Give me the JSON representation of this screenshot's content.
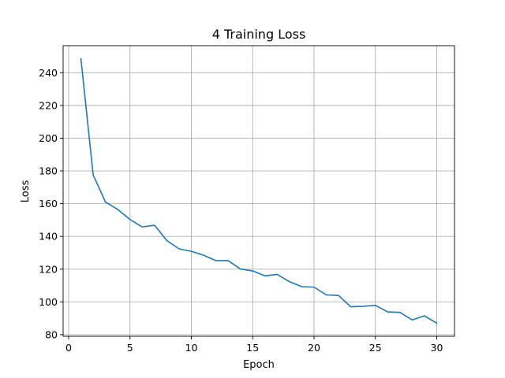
{
  "chart_data": {
    "type": "line",
    "title": "4 Training Loss",
    "xlabel": "Epoch",
    "ylabel": "Loss",
    "xlim": [
      -0.45,
      31.45
    ],
    "ylim": [
      79,
      256.5
    ],
    "xticks": [
      0,
      5,
      10,
      15,
      20,
      25,
      30
    ],
    "yticks": [
      80,
      100,
      120,
      140,
      160,
      180,
      200,
      220,
      240
    ],
    "grid": true,
    "series": [
      {
        "color": "#1f77b4",
        "x": [
          1,
          2,
          3,
          4,
          5,
          6,
          7,
          8,
          9,
          10,
          11,
          12,
          13,
          14,
          15,
          16,
          17,
          18,
          19,
          20,
          21,
          22,
          23,
          24,
          25,
          26,
          27,
          28,
          29,
          30
        ],
        "y": [
          248.5,
          177.5,
          161,
          156.5,
          150.3,
          145.8,
          146.8,
          137.5,
          132.4,
          130.9,
          128.5,
          125.2,
          125.2,
          120.1,
          118.9,
          115.9,
          116.8,
          112.3,
          109.3,
          109.0,
          104.3,
          103.9,
          97.0,
          97.3,
          97.9,
          93.9,
          93.6,
          89.0,
          91.5,
          87.0
        ]
      }
    ]
  }
}
